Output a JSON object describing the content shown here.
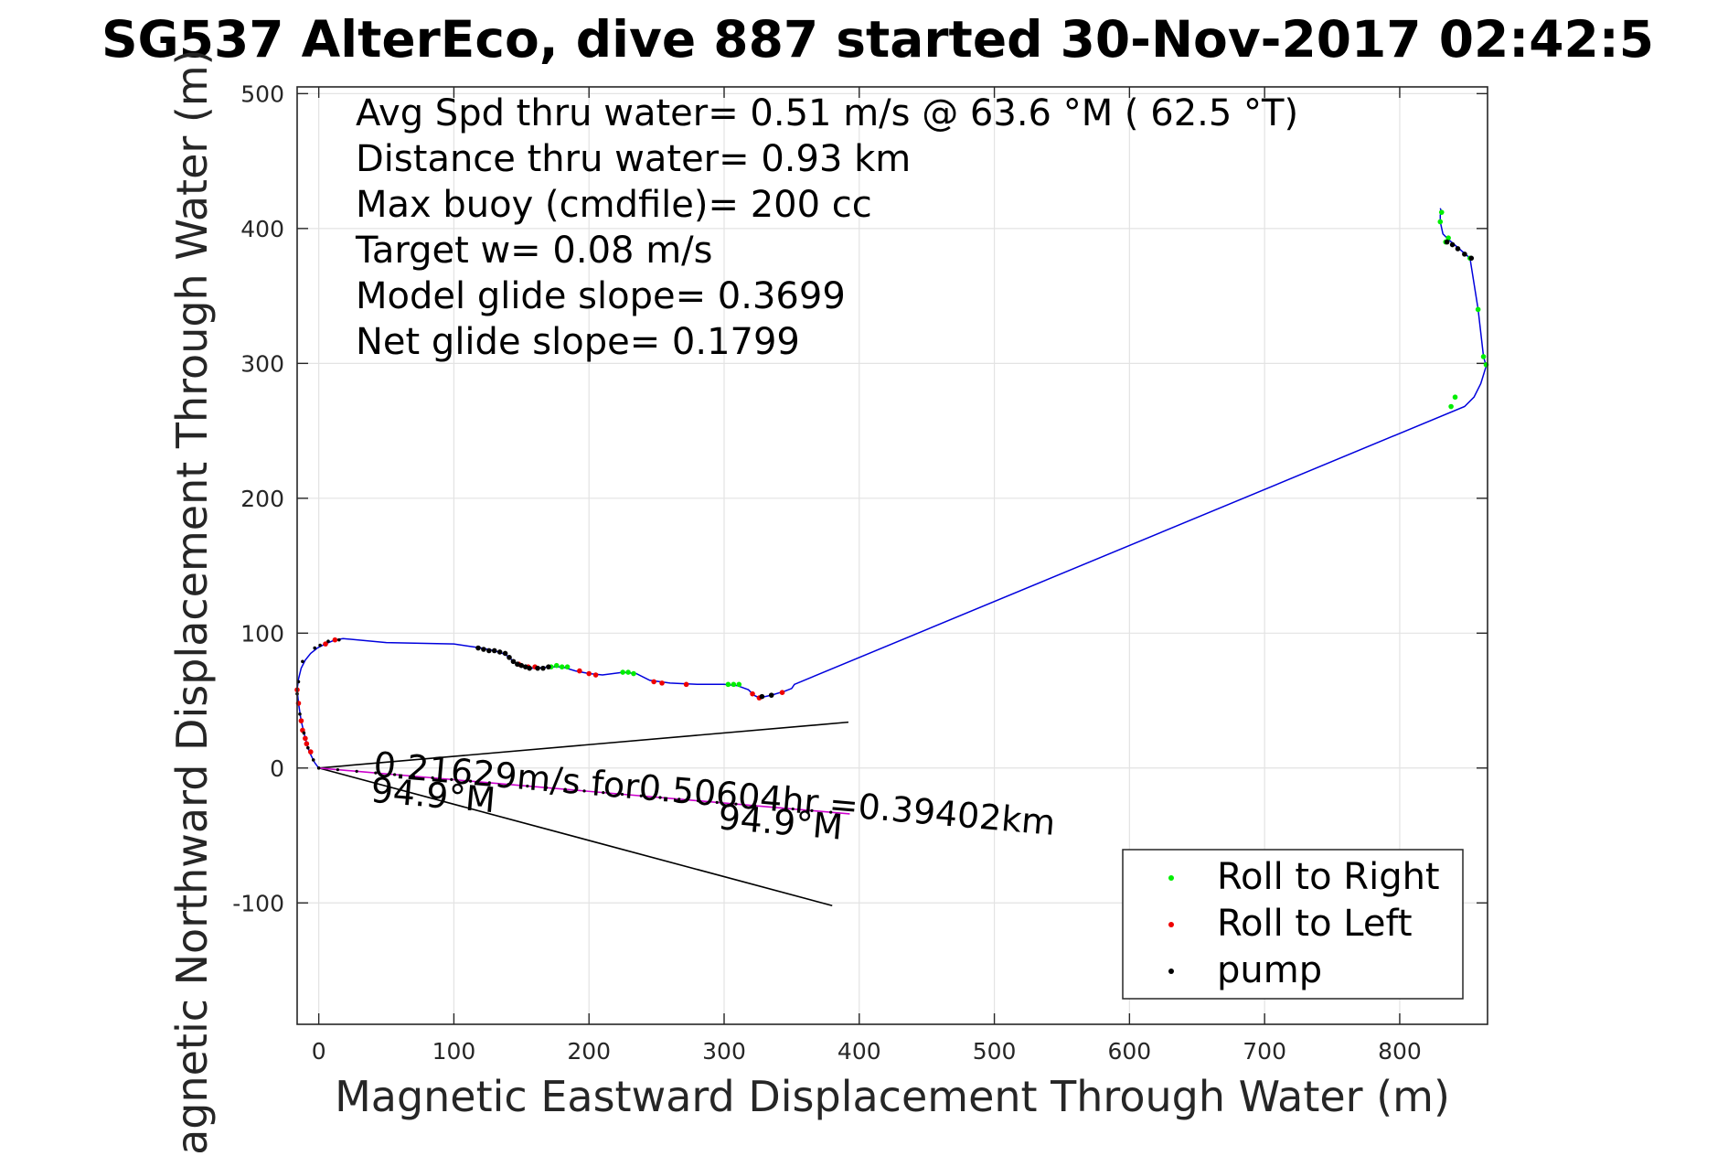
{
  "chart_data": {
    "type": "line",
    "title": "SG537 AlterEco, dive 887 started 30-Nov-2017 02:42:5",
    "xlabel": "Magnetic Eastward Displacement Through Water (m)",
    "ylabel": "Magnetic Northward Displacement Through Water (m)",
    "xlim": [
      -16,
      865
    ],
    "ylim": [
      -190,
      505
    ],
    "xticks": [
      0,
      100,
      200,
      300,
      400,
      500,
      600,
      700,
      800
    ],
    "yticks": [
      -100,
      0,
      100,
      200,
      300,
      400,
      500
    ],
    "xtick_labels": [
      "0",
      "100",
      "200",
      "300",
      "400",
      "500",
      "600",
      "700",
      "800"
    ],
    "ytick_labels": [
      "-100",
      "0",
      "100",
      "200",
      "300",
      "400",
      "500"
    ],
    "grid": true,
    "legend_position": "bottom-right",
    "info_lines": [
      "Avg Spd thru water=  0.51 m/s @  63.6 °M ( 62.5 °T)",
      "Distance thru water=  0.93 km",
      "Max buoy (cmdfile)= 200 cc",
      "Target w= 0.08 m/s",
      "Model glide slope= 0.3699",
      "Net glide slope= 0.1799"
    ],
    "annotations": {
      "current_text": "0.21629m/s for0.50604hr =0.39402km",
      "heading_near": "94.9°M",
      "heading_far": "94.9°M"
    },
    "colors": {
      "track": "#0000dd",
      "roll_right": "#00ee00",
      "roll_left": "#ee0000",
      "pump": "#000000",
      "current_vector": "#cc00cc",
      "heading_lines": "#000000"
    },
    "track": {
      "x": [
        0,
        -3,
        -7,
        -10,
        -13,
        -15,
        -16,
        -15,
        -13,
        -10,
        -6,
        -1,
        5,
        12,
        18,
        50,
        100,
        120,
        130,
        136,
        140,
        144,
        149,
        155,
        162,
        170,
        180,
        190,
        200,
        210,
        225,
        235,
        245,
        260,
        280,
        300,
        310,
        318,
        322,
        326,
        335,
        345,
        350,
        352,
        848,
        855,
        860,
        864,
        862,
        858,
        852,
        844,
        836,
        832,
        830,
        830,
        831,
        830
      ],
      "y": [
        0,
        4,
        12,
        22,
        35,
        48,
        58,
        66,
        74,
        80,
        85,
        89,
        92,
        95,
        96,
        93,
        92,
        89,
        87,
        85,
        83,
        79,
        76,
        74,
        74,
        75,
        75,
        72,
        70,
        69,
        71,
        70,
        65,
        63,
        62,
        62,
        61,
        58,
        54,
        52,
        54,
        57,
        59,
        62,
        268,
        275,
        285,
        298,
        305,
        340,
        378,
        385,
        392,
        396,
        405,
        410,
        412,
        415
      ]
    },
    "roll_right": {
      "x": [
        172,
        176,
        180,
        184,
        225,
        229,
        233,
        303,
        307,
        311,
        834,
        836,
        830,
        831,
        862,
        864,
        858,
        852,
        838,
        841
      ],
      "y": [
        75,
        76,
        75,
        75,
        71,
        71,
        70,
        62,
        62,
        62,
        390,
        393,
        405,
        412,
        305,
        299,
        340,
        378,
        268,
        275
      ]
    },
    "roll_left": {
      "x": [
        -16,
        -15,
        -13,
        -10,
        -6,
        5,
        12,
        148,
        155,
        160,
        193,
        200,
        205,
        248,
        254,
        272,
        321,
        326,
        343,
        -12,
        -9
      ],
      "y": [
        58,
        48,
        35,
        22,
        12,
        92,
        95,
        77,
        75,
        75,
        72,
        70,
        69,
        64,
        63,
        62,
        55,
        52,
        56,
        28,
        18
      ]
    },
    "pump": {
      "x": [
        118,
        122,
        126,
        130,
        134,
        138,
        141,
        144,
        147,
        150,
        153,
        156,
        162,
        166,
        170,
        328,
        335,
        835,
        839,
        843,
        848,
        853
      ],
      "y": [
        89,
        88,
        87,
        87,
        86,
        85,
        82,
        79,
        77,
        76,
        75,
        74,
        74,
        74,
        75,
        53,
        54,
        390,
        388,
        385,
        381,
        378
      ],
      "along_track_dots": [
        0,
        -4,
        -8,
        -11,
        -14,
        -16,
        -15,
        -12,
        -3,
        1,
        7,
        15
      ]
    },
    "heading_fan": {
      "start": [
        0,
        0
      ],
      "upper_end": [
        392,
        34
      ],
      "lower_end": [
        380,
        -102
      ]
    },
    "current_vector": {
      "start": [
        0,
        0
      ],
      "end": [
        393,
        -34
      ]
    },
    "legend": [
      "Roll to Right",
      "Roll to Left",
      "pump"
    ]
  }
}
